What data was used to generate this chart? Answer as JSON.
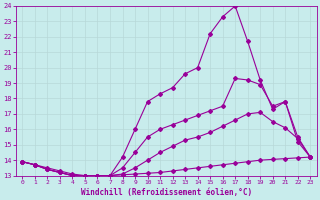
{
  "xlabel": "Windchill (Refroidissement éolien,°C)",
  "bg_color": "#c8ecec",
  "grid_color": "#b8d8d8",
  "line_color": "#990099",
  "xlim": [
    -0.5,
    23.5
  ],
  "ylim": [
    13,
    24
  ],
  "xticks": [
    0,
    1,
    2,
    3,
    4,
    5,
    6,
    7,
    8,
    9,
    10,
    11,
    12,
    13,
    14,
    15,
    16,
    17,
    18,
    19,
    20,
    21,
    22,
    23
  ],
  "yticks": [
    13,
    14,
    15,
    16,
    17,
    18,
    19,
    20,
    21,
    22,
    23,
    24
  ],
  "line1_x": [
    0,
    1,
    2,
    3,
    4,
    5,
    6,
    7,
    8,
    9,
    10,
    11,
    12,
    13,
    14,
    15,
    16,
    17,
    18,
    19,
    20,
    21,
    22,
    23
  ],
  "line1_y": [
    13.9,
    13.7,
    13.5,
    13.3,
    13.1,
    13.0,
    13.0,
    13.0,
    13.05,
    13.1,
    13.15,
    13.2,
    13.3,
    13.4,
    13.5,
    13.6,
    13.7,
    13.8,
    13.9,
    14.0,
    14.05,
    14.1,
    14.15,
    14.2
  ],
  "line2_x": [
    0,
    1,
    2,
    3,
    4,
    5,
    6,
    7,
    8,
    9,
    10,
    11,
    12,
    13,
    14,
    15,
    16,
    17,
    18,
    19,
    20,
    21,
    22,
    23
  ],
  "line2_y": [
    13.9,
    13.7,
    13.4,
    13.2,
    13.0,
    13.0,
    13.0,
    13.0,
    13.1,
    13.5,
    14.0,
    14.5,
    14.9,
    15.3,
    15.5,
    15.8,
    16.2,
    16.6,
    17.0,
    17.1,
    16.5,
    16.1,
    15.4,
    14.2
  ],
  "line3_x": [
    0,
    1,
    2,
    3,
    4,
    5,
    6,
    7,
    8,
    9,
    10,
    11,
    12,
    13,
    14,
    15,
    16,
    17,
    18,
    19,
    20,
    21,
    22,
    23
  ],
  "line3_y": [
    13.9,
    13.7,
    13.4,
    13.2,
    13.0,
    13.0,
    13.0,
    13.0,
    13.5,
    14.5,
    15.5,
    16.0,
    16.3,
    16.6,
    16.9,
    17.2,
    17.5,
    19.3,
    19.2,
    18.9,
    17.5,
    17.8,
    15.2,
    14.2
  ],
  "line4_x": [
    0,
    1,
    2,
    3,
    4,
    5,
    6,
    7,
    8,
    9,
    10,
    11,
    12,
    13,
    14,
    15,
    16,
    17,
    18,
    19,
    20,
    21,
    22,
    23
  ],
  "line4_y": [
    13.9,
    13.7,
    13.4,
    13.2,
    13.0,
    13.0,
    13.0,
    13.0,
    14.2,
    16.0,
    17.8,
    18.3,
    18.7,
    19.6,
    20.0,
    22.2,
    23.3,
    24.0,
    21.7,
    19.2,
    17.3,
    17.8,
    15.5,
    14.2
  ]
}
